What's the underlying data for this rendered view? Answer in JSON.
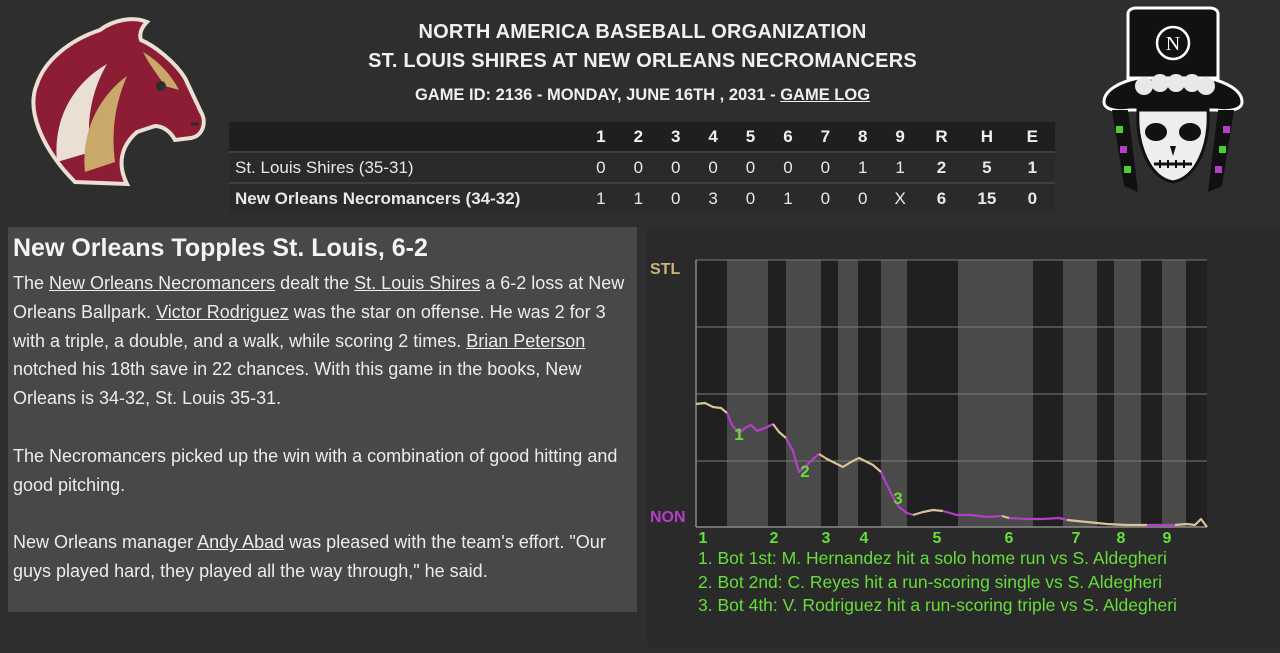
{
  "header": {
    "organization": "NORTH AMERICA BASEBALL ORGANIZATION",
    "matchup": "ST. LOUIS SHIRES AT NEW ORLEANS NECROMANCERS",
    "game_info": "GAME ID: 2136 - MONDAY, JUNE 16TH , 2031 - ",
    "game_log_link": "GAME LOG"
  },
  "logos": {
    "away": "horse-head-logo",
    "home": "skull-top-hat-logo",
    "home_monogram": "N"
  },
  "linescore": {
    "columns": [
      "1",
      "2",
      "3",
      "4",
      "5",
      "6",
      "7",
      "8",
      "9",
      "R",
      "H",
      "E"
    ],
    "rows": [
      {
        "team": "St. Louis Shires (35-31)",
        "innings": [
          "0",
          "0",
          "0",
          "0",
          "0",
          "0",
          "0",
          "1",
          "1"
        ],
        "r": "2",
        "h": "5",
        "e": "1"
      },
      {
        "team": "New Orleans Necromancers (34-32)",
        "innings": [
          "1",
          "1",
          "0",
          "3",
          "0",
          "1",
          "0",
          "0",
          "X"
        ],
        "r": "6",
        "h": "15",
        "e": "0"
      }
    ]
  },
  "story": {
    "headline": "New Orleans Topples St. Louis, 6-2",
    "p1": {
      "t1": "The ",
      "home_team_link": "New Orleans Necromancers",
      "t2": " dealt the ",
      "away_team_link": "St. Louis Shires",
      "t3": " a 6-2 loss at New Orleans Ballpark. ",
      "player1_link": "Victor Rodriguez",
      "t4": " was the star on offense. He was 2 for 3 with a triple, a double, and a walk, while scoring 2 times. ",
      "player2_link": "Brian Peterson",
      "t5": " notched his 18th save in 22 chances. With this game in the books, New Orleans is 34-32, St. Louis 35-31."
    },
    "p2": "The Necromancers picked up the win with a combination of good hitting and good pitching.",
    "p3": {
      "t1": "New Orleans manager ",
      "manager_link": "Andy Abad",
      "t2": " was pleased with the team's effort. \"Our guys played hard, they played all the way through,\" he said."
    }
  },
  "win_probability": {
    "top_label": "STL",
    "bottom_label": "NON",
    "inning_labels": [
      "1",
      "2",
      "3",
      "4",
      "5",
      "6",
      "7",
      "8",
      "9"
    ],
    "event_markers": [
      "1",
      "2",
      "3"
    ],
    "colors": {
      "away_line": "#d9c39a",
      "home_line": "#b23fc6",
      "label_green": "#66dd3a",
      "stl_color": "#cfb57c",
      "non_color": "#b23fc6"
    },
    "key_plays": [
      "1. Bot 1st: M. Hernandez hit a solo home run vs S. Aldegheri",
      "2. Bot 2nd: C. Reyes hit a run-scoring single vs S. Aldegheri",
      "3. Bot 4th: V. Rodriguez hit a run-scoring triple vs S. Aldegheri"
    ]
  }
}
